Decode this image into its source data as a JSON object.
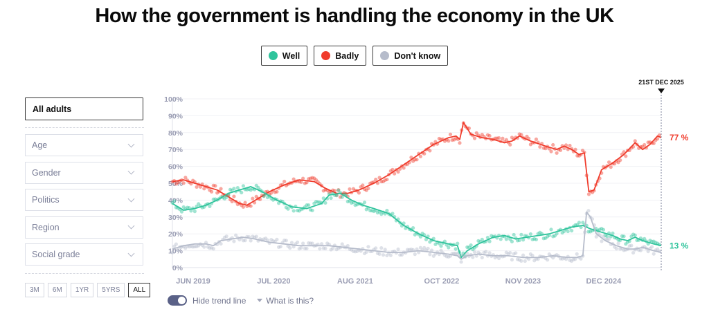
{
  "page": {
    "title": "How the government is handling the economy in the UK"
  },
  "legend": [
    {
      "label": "Well",
      "color": "#2fc49c"
    },
    {
      "label": "Badly",
      "color": "#f03c2c"
    },
    {
      "label": "Don't know",
      "color": "#b6bccb"
    }
  ],
  "sidebar": {
    "population": "All adults",
    "filters": [
      {
        "label": "Age"
      },
      {
        "label": "Gender"
      },
      {
        "label": "Politics"
      },
      {
        "label": "Region"
      },
      {
        "label": "Social grade"
      }
    ],
    "ranges": [
      {
        "label": "3M",
        "active": false
      },
      {
        "label": "6M",
        "active": false
      },
      {
        "label": "1YR",
        "active": false
      },
      {
        "label": "5YRS",
        "active": false
      },
      {
        "label": "ALL",
        "active": true
      }
    ]
  },
  "controls": {
    "toggle_label": "Hide trend line",
    "toggle_on": true,
    "help_label": "What is this?"
  },
  "chart_data": {
    "type": "line",
    "title": "How the government is handling the economy in the UK",
    "xlabel": "",
    "ylabel": "",
    "ylim": [
      0,
      100
    ],
    "yticks": [
      "0%",
      "10%",
      "20%",
      "30%",
      "40%",
      "50%",
      "60%",
      "70%",
      "80%",
      "90%",
      "100%"
    ],
    "x_unit": "years since Jun 2019",
    "xlim": [
      0,
      6.55
    ],
    "xticks": [
      {
        "label": "JUN 2019",
        "x": 0
      },
      {
        "label": "JUL 2020",
        "x": 1.08
      },
      {
        "label": "AUG 2021",
        "x": 2.17
      },
      {
        "label": "OCT 2022",
        "x": 3.33
      },
      {
        "label": "NOV 2023",
        "x": 4.42
      },
      {
        "label": "DEC 2024",
        "x": 5.5
      }
    ],
    "marker": {
      "label": "21ST DEC 2025",
      "x": 6.55
    },
    "grid": true,
    "legend_position": "top-center",
    "series": [
      {
        "name": "Badly",
        "color": "#f03c2c",
        "end_label": "77 %",
        "points": [
          [
            0,
            51
          ],
          [
            0.15,
            52
          ],
          [
            0.3,
            50
          ],
          [
            0.45,
            48
          ],
          [
            0.6,
            46
          ],
          [
            0.75,
            42
          ],
          [
            0.9,
            38
          ],
          [
            1.0,
            37
          ],
          [
            1.15,
            41
          ],
          [
            1.3,
            45
          ],
          [
            1.5,
            49
          ],
          [
            1.7,
            52
          ],
          [
            1.9,
            51
          ],
          [
            2.05,
            47
          ],
          [
            2.2,
            44
          ],
          [
            2.35,
            44
          ],
          [
            2.5,
            46
          ],
          [
            2.7,
            50
          ],
          [
            2.9,
            55
          ],
          [
            3.1,
            61
          ],
          [
            3.3,
            67
          ],
          [
            3.5,
            73
          ],
          [
            3.7,
            77
          ],
          [
            3.8,
            78
          ],
          [
            3.85,
            76
          ],
          [
            3.9,
            86
          ],
          [
            4.0,
            79
          ],
          [
            4.15,
            77
          ],
          [
            4.3,
            76
          ],
          [
            4.45,
            74
          ],
          [
            4.55,
            75
          ],
          [
            4.65,
            78
          ],
          [
            4.8,
            75
          ],
          [
            5.0,
            72
          ],
          [
            5.15,
            70
          ],
          [
            5.25,
            72
          ],
          [
            5.35,
            70
          ],
          [
            5.45,
            67
          ],
          [
            5.52,
            68
          ],
          [
            5.58,
            45
          ],
          [
            5.65,
            46
          ],
          [
            5.75,
            58
          ],
          [
            5.9,
            62
          ],
          [
            6.05,
            67
          ],
          [
            6.2,
            74
          ],
          [
            6.3,
            70
          ],
          [
            6.4,
            73
          ],
          [
            6.5,
            78
          ],
          [
            6.55,
            77
          ]
        ]
      },
      {
        "name": "Well",
        "color": "#2fc49c",
        "end_label": "13 %",
        "points": [
          [
            0,
            38
          ],
          [
            0.15,
            34
          ],
          [
            0.3,
            35
          ],
          [
            0.45,
            37
          ],
          [
            0.6,
            40
          ],
          [
            0.75,
            44
          ],
          [
            0.9,
            46
          ],
          [
            1.05,
            48
          ],
          [
            1.2,
            45
          ],
          [
            1.4,
            40
          ],
          [
            1.6,
            36
          ],
          [
            1.8,
            35
          ],
          [
            2.0,
            38
          ],
          [
            2.1,
            43
          ],
          [
            2.25,
            44
          ],
          [
            2.4,
            40
          ],
          [
            2.55,
            37
          ],
          [
            2.7,
            35
          ],
          [
            2.9,
            32
          ],
          [
            3.1,
            25
          ],
          [
            3.3,
            20
          ],
          [
            3.5,
            16
          ],
          [
            3.7,
            14
          ],
          [
            3.82,
            13
          ],
          [
            3.87,
            6
          ],
          [
            3.95,
            10
          ],
          [
            4.1,
            14
          ],
          [
            4.3,
            18
          ],
          [
            4.45,
            19
          ],
          [
            4.6,
            17
          ],
          [
            4.75,
            18
          ],
          [
            4.9,
            19
          ],
          [
            5.05,
            20
          ],
          [
            5.2,
            22
          ],
          [
            5.35,
            24
          ],
          [
            5.5,
            25
          ],
          [
            5.6,
            23
          ],
          [
            5.75,
            21
          ],
          [
            5.9,
            19
          ],
          [
            6.0,
            17
          ],
          [
            6.1,
            16
          ],
          [
            6.2,
            18
          ],
          [
            6.3,
            16
          ],
          [
            6.45,
            14
          ],
          [
            6.55,
            13
          ]
        ]
      },
      {
        "name": "Don't know",
        "color": "#b6bccb",
        "end_label": "",
        "points": [
          [
            0,
            11
          ],
          [
            0.15,
            13
          ],
          [
            0.3,
            14
          ],
          [
            0.45,
            14
          ],
          [
            0.55,
            13
          ],
          [
            0.65,
            16
          ],
          [
            0.8,
            17
          ],
          [
            0.95,
            18
          ],
          [
            1.1,
            17
          ],
          [
            1.3,
            15
          ],
          [
            1.5,
            14
          ],
          [
            1.7,
            13
          ],
          [
            1.9,
            13
          ],
          [
            2.1,
            13
          ],
          [
            2.3,
            12
          ],
          [
            2.5,
            11
          ],
          [
            2.7,
            10
          ],
          [
            2.9,
            9
          ],
          [
            3.1,
            9
          ],
          [
            3.3,
            10
          ],
          [
            3.5,
            9
          ],
          [
            3.7,
            8
          ],
          [
            3.82,
            7
          ],
          [
            3.87,
            5
          ],
          [
            3.95,
            7
          ],
          [
            4.1,
            8
          ],
          [
            4.3,
            7
          ],
          [
            4.5,
            7
          ],
          [
            4.7,
            6
          ],
          [
            4.9,
            6
          ],
          [
            5.1,
            7
          ],
          [
            5.3,
            6
          ],
          [
            5.42,
            6
          ],
          [
            5.5,
            7
          ],
          [
            5.55,
            33
          ],
          [
            5.6,
            30
          ],
          [
            5.68,
            20
          ],
          [
            5.8,
            16
          ],
          [
            5.95,
            13
          ],
          [
            6.1,
            11
          ],
          [
            6.2,
            11
          ],
          [
            6.3,
            12
          ],
          [
            6.45,
            10
          ],
          [
            6.55,
            9
          ]
        ]
      }
    ]
  }
}
